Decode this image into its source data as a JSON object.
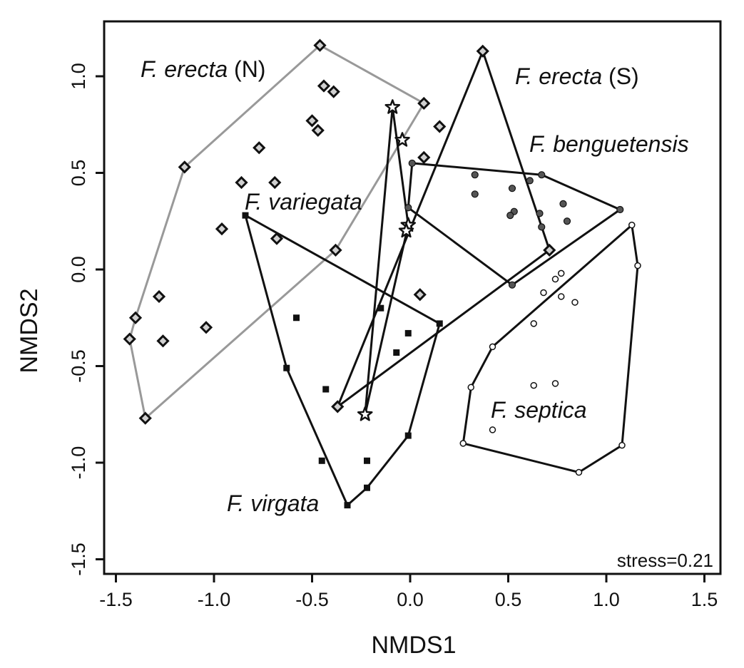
{
  "chart_data": {
    "type": "scatter",
    "title": "",
    "xlabel": "NMDS1",
    "ylabel": "NMDS2",
    "xlim": [
      -1.6,
      1.6
    ],
    "ylim": [
      -1.6,
      1.28
    ],
    "xticks": [
      -1.5,
      -1.0,
      -0.5,
      0.0,
      0.5,
      1.0,
      1.5
    ],
    "yticks": [
      -1.5,
      -1.0,
      -0.5,
      0.0,
      0.5,
      1.0
    ],
    "xtick_labels": [
      "-1.5",
      "-1.0",
      "-0.5",
      "0.0",
      "0.5",
      "1.0",
      "1.5"
    ],
    "ytick_labels": [
      "-1.5",
      "-1.0",
      "-0.5",
      "0.0",
      "0.5",
      "1.0"
    ],
    "grid": false,
    "annotation": "stress=0.21",
    "series": [
      {
        "name": "F. erecta (N)",
        "name_italic": "F. erecta",
        "name_suffix": " (N)",
        "marker": "diamond-open",
        "hull_color": "#999999",
        "points": [
          [
            -0.46,
            1.16
          ],
          [
            -0.44,
            0.95
          ],
          [
            -0.39,
            0.92
          ],
          [
            0.07,
            0.86
          ],
          [
            -0.5,
            0.77
          ],
          [
            -0.47,
            0.72
          ],
          [
            -0.77,
            0.63
          ],
          [
            -1.15,
            0.53
          ],
          [
            -0.86,
            0.45
          ],
          [
            -0.69,
            0.45
          ],
          [
            -0.96,
            0.21
          ],
          [
            -0.38,
            0.1
          ],
          [
            -1.28,
            -0.14
          ],
          [
            -1.4,
            -0.25
          ],
          [
            -1.04,
            -0.3
          ],
          [
            -1.43,
            -0.36
          ],
          [
            -1.26,
            -0.37
          ],
          [
            -1.35,
            -0.77
          ]
        ],
        "hull": [
          [
            -0.46,
            1.16
          ],
          [
            0.07,
            0.86
          ],
          [
            -0.38,
            0.1
          ],
          [
            -1.35,
            -0.77
          ],
          [
            -1.43,
            -0.36
          ],
          [
            -1.4,
            -0.25
          ],
          [
            -1.15,
            0.53
          ]
        ]
      },
      {
        "name": "F. erecta (S)",
        "name_italic": "F. erecta",
        "name_suffix": " (S)",
        "marker": "diamond-open",
        "hull_color": "#111111",
        "points": [
          [
            0.37,
            1.13
          ],
          [
            0.15,
            0.74
          ],
          [
            0.07,
            0.58
          ],
          [
            -0.68,
            0.16
          ],
          [
            0.05,
            -0.13
          ],
          [
            0.71,
            0.1
          ],
          [
            -0.37,
            -0.71
          ]
        ],
        "hull": [
          [
            0.37,
            1.13
          ],
          [
            0.71,
            0.1
          ],
          [
            -0.37,
            -0.71
          ]
        ]
      },
      {
        "name": "F. variegata",
        "name_italic": "F. variegata",
        "name_suffix": "",
        "marker": "star",
        "hull_color": "#111111",
        "points": [
          [
            -0.09,
            0.84
          ],
          [
            -0.04,
            0.67
          ],
          [
            -0.01,
            0.23
          ],
          [
            -0.02,
            0.2
          ],
          [
            -0.23,
            -0.75
          ]
        ],
        "hull": [
          [
            -0.09,
            0.84
          ],
          [
            -0.01,
            0.23
          ],
          [
            -0.23,
            -0.75
          ]
        ]
      },
      {
        "name": "F. benguetensis",
        "name_italic": "F. benguetensis",
        "name_suffix": "",
        "marker": "circle-filled",
        "hull_color": "#111111",
        "points": [
          [
            0.01,
            0.55
          ],
          [
            0.33,
            0.49
          ],
          [
            0.67,
            0.49
          ],
          [
            0.61,
            0.46
          ],
          [
            0.33,
            0.39
          ],
          [
            0.52,
            0.42
          ],
          [
            0.53,
            0.3
          ],
          [
            0.51,
            0.28
          ],
          [
            0.78,
            0.34
          ],
          [
            0.66,
            0.29
          ],
          [
            0.8,
            0.25
          ],
          [
            0.67,
            0.22
          ],
          [
            -0.01,
            0.32
          ],
          [
            1.07,
            0.31
          ],
          [
            0.52,
            -0.08
          ]
        ],
        "hull": [
          [
            0.01,
            0.55
          ],
          [
            0.67,
            0.49
          ],
          [
            1.07,
            0.31
          ],
          [
            0.52,
            -0.08
          ],
          [
            -0.01,
            0.32
          ]
        ]
      },
      {
        "name": "F. virgata",
        "name_italic": "F. virgata",
        "name_suffix": "",
        "marker": "square-filled",
        "hull_color": "#111111",
        "points": [
          [
            -0.84,
            0.28
          ],
          [
            -0.58,
            -0.25
          ],
          [
            -0.15,
            -0.2
          ],
          [
            0.15,
            -0.28
          ],
          [
            -0.01,
            -0.33
          ],
          [
            -0.07,
            -0.43
          ],
          [
            -0.63,
            -0.51
          ],
          [
            -0.43,
            -0.62
          ],
          [
            -0.01,
            -0.86
          ],
          [
            -0.45,
            -0.99
          ],
          [
            -0.22,
            -0.99
          ],
          [
            -0.22,
            -1.13
          ],
          [
            -0.32,
            -1.22
          ]
        ],
        "hull": [
          [
            -0.84,
            0.28
          ],
          [
            0.15,
            -0.28
          ],
          [
            -0.01,
            -0.86
          ],
          [
            -0.22,
            -1.13
          ],
          [
            -0.32,
            -1.22
          ],
          [
            -0.63,
            -0.51
          ]
        ]
      },
      {
        "name": "F. septica",
        "name_italic": "F. septica",
        "name_suffix": "",
        "marker": "circle-open",
        "hull_color": "#111111",
        "points": [
          [
            1.13,
            0.23
          ],
          [
            1.16,
            0.02
          ],
          [
            0.77,
            -0.02
          ],
          [
            0.74,
            -0.05
          ],
          [
            0.68,
            -0.12
          ],
          [
            0.77,
            -0.14
          ],
          [
            0.84,
            -0.17
          ],
          [
            0.63,
            -0.28
          ],
          [
            0.42,
            -0.4
          ],
          [
            0.31,
            -0.61
          ],
          [
            0.63,
            -0.6
          ],
          [
            0.74,
            -0.59
          ],
          [
            0.42,
            -0.83
          ],
          [
            0.27,
            -0.9
          ],
          [
            1.08,
            -0.91
          ],
          [
            0.86,
            -1.05
          ]
        ],
        "hull": [
          [
            1.13,
            0.23
          ],
          [
            1.16,
            0.02
          ],
          [
            1.08,
            -0.91
          ],
          [
            0.86,
            -1.05
          ],
          [
            0.27,
            -0.9
          ],
          [
            0.31,
            -0.61
          ],
          [
            0.42,
            -0.4
          ]
        ]
      }
    ]
  }
}
